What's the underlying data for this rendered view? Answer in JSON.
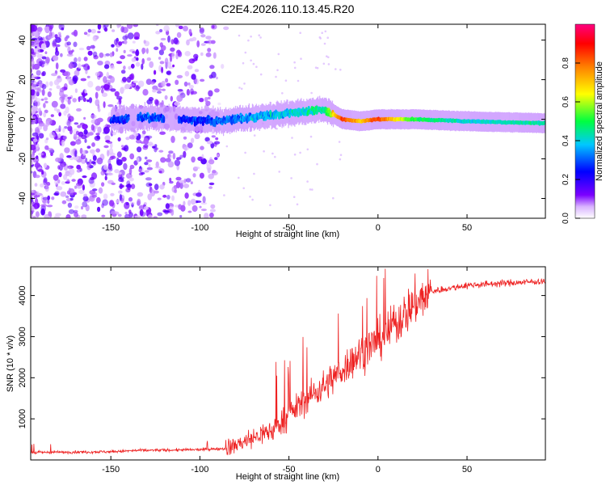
{
  "title": "C2E4.2026.110.13.45.R20",
  "chart_data": [
    {
      "type": "heatmap",
      "name": "spectrogram",
      "xlabel": "Height of straight line (km)",
      "ylabel": "Frequency (Hz)",
      "xlim": [
        -195,
        94
      ],
      "ylim": [
        -50,
        48
      ],
      "xticks": [
        -150,
        -100,
        -50,
        0,
        50
      ],
      "yticks": [
        -40,
        -20,
        0,
        20,
        40
      ],
      "colorbar": {
        "label": "Normalized spectral amplitude",
        "range": [
          0,
          1
        ],
        "ticks": [
          0.0,
          0.2,
          0.4,
          0.6,
          0.8
        ],
        "tick_labels": [
          "0.0",
          "0.2",
          "0.4",
          "0.6",
          "0.8"
        ],
        "colormap": [
          "#ffffff",
          "#7b00ff",
          "#0000ff",
          "#00c8ff",
          "#00ff40",
          "#ffff00",
          "#ff8000",
          "#ff0000",
          "#ff0080"
        ]
      },
      "signal_trace": [
        {
          "x": -150,
          "f": 0,
          "amp": 0.25
        },
        {
          "x": -130,
          "f": 1,
          "amp": 0.3
        },
        {
          "x": -110,
          "f": 0,
          "amp": 0.25
        },
        {
          "x": -90,
          "f": -1,
          "amp": 0.3
        },
        {
          "x": -70,
          "f": 1,
          "amp": 0.35
        },
        {
          "x": -50,
          "f": 3,
          "amp": 0.4
        },
        {
          "x": -30,
          "f": 5,
          "amp": 0.45
        },
        {
          "x": -20,
          "f": 0,
          "amp": 0.85
        },
        {
          "x": -10,
          "f": -1,
          "amp": 0.7
        },
        {
          "x": 0,
          "f": 0,
          "amp": 0.85
        },
        {
          "x": 20,
          "f": 0,
          "amp": 0.5
        },
        {
          "x": 50,
          "f": -1,
          "amp": 0.4
        },
        {
          "x": 94,
          "f": -2,
          "amp": 0.45
        }
      ]
    },
    {
      "type": "line",
      "name": "snr",
      "xlabel": "Height of straight line (km)",
      "ylabel": "SNR (10 * v/v)",
      "xlim": [
        -195,
        94
      ],
      "ylim": [
        0,
        4700
      ],
      "xticks": [
        -150,
        -100,
        -50,
        0,
        50
      ],
      "yticks": [
        1000,
        2000,
        3000,
        4000
      ],
      "color": "#ee2222",
      "series": [
        {
          "x": -195,
          "y": 180
        },
        {
          "x": -150,
          "y": 200
        },
        {
          "x": -135,
          "y": 230
        },
        {
          "x": -100,
          "y": 250
        },
        {
          "x": -85,
          "y": 280
        },
        {
          "x": -75,
          "y": 450
        },
        {
          "x": -60,
          "y": 700
        },
        {
          "x": -50,
          "y": 1100
        },
        {
          "x": -40,
          "y": 1500
        },
        {
          "x": -30,
          "y": 1800
        },
        {
          "x": -20,
          "y": 2200
        },
        {
          "x": -10,
          "y": 2600
        },
        {
          "x": 0,
          "y": 2900
        },
        {
          "x": 10,
          "y": 3300
        },
        {
          "x": 20,
          "y": 3800
        },
        {
          "x": 30,
          "y": 4100
        },
        {
          "x": 50,
          "y": 4250
        },
        {
          "x": 70,
          "y": 4300
        },
        {
          "x": 94,
          "y": 4350
        }
      ]
    }
  ]
}
